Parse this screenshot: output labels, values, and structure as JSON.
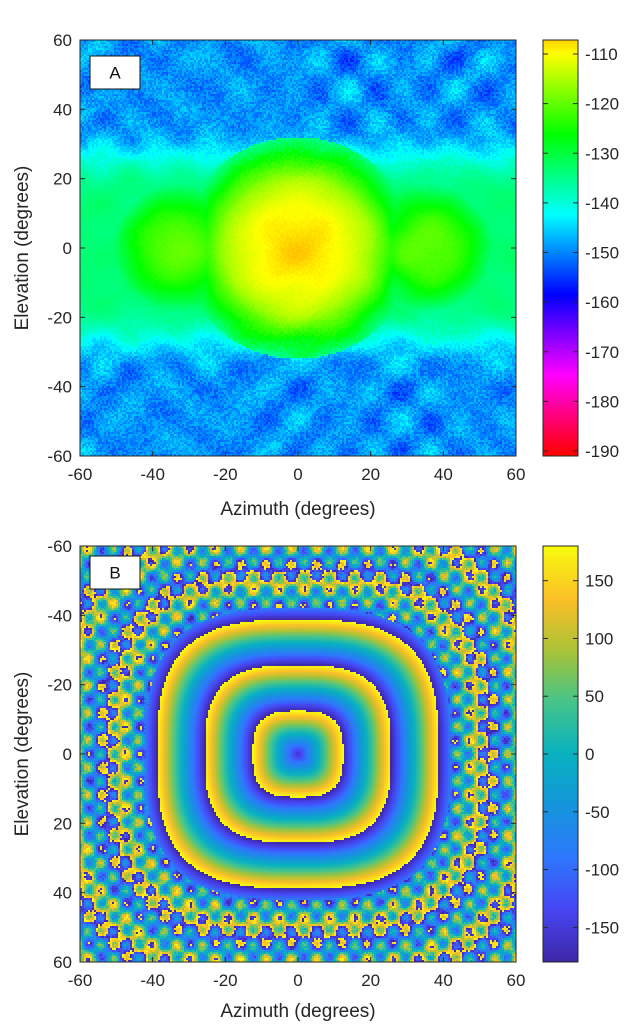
{
  "chart_data": [
    {
      "type": "heatmap",
      "panel_label": "A",
      "xlabel": "Azimuth (degrees)",
      "ylabel": "Elevation (degrees)",
      "xlim": [
        -60,
        60
      ],
      "ylim": [
        -60,
        60
      ],
      "y_direction": "up",
      "xticks": [
        -60,
        -40,
        -20,
        0,
        20,
        40,
        60
      ],
      "yticks": [
        -60,
        -40,
        -20,
        0,
        20,
        40,
        60
      ],
      "colorbar": {
        "ticks": [
          -110,
          -120,
          -130,
          -140,
          -150,
          -160,
          -170,
          -180,
          -190
        ],
        "range": [
          -190,
          -110
        ],
        "colormap": "hsv",
        "top_color": "#ff0000",
        "bottom_color": "#ff0000"
      },
      "features": {
        "main_lobe": {
          "center": [
            0,
            0
          ],
          "radius_deg": 20,
          "value": -110
        },
        "side_lobes": [
          {
            "center": [
              -33,
              0
            ],
            "radius_deg": 11,
            "value": -122
          },
          {
            "center": [
              36,
              0
            ],
            "radius_deg": 11,
            "value": -122
          }
        ],
        "background_band": {
          "elevation_range": [
            -28,
            28
          ],
          "value": -135
        },
        "noise_floor": -150
      }
    },
    {
      "type": "heatmap",
      "panel_label": "B",
      "xlabel": "Azimuth (degrees)",
      "ylabel": "Elevation (degrees)",
      "xlim": [
        -60,
        60
      ],
      "ylim": [
        -60,
        60
      ],
      "y_direction": "down",
      "xticks": [
        -60,
        -40,
        -20,
        0,
        20,
        40,
        60
      ],
      "yticks": [
        -60,
        -40,
        -20,
        0,
        20,
        40,
        60
      ],
      "colorbar": {
        "ticks": [
          150,
          100,
          50,
          0,
          -50,
          -100,
          -150
        ],
        "range": [
          -180,
          180
        ],
        "colormap": "parula",
        "top_color": "#f9fb0e",
        "bottom_color": "#3e26a8"
      },
      "features": {
        "phase_center": [
          0,
          0
        ],
        "center_value": -160,
        "ring_spacing_deg": 12.5,
        "wrap": [
          -180,
          180
        ]
      }
    }
  ]
}
